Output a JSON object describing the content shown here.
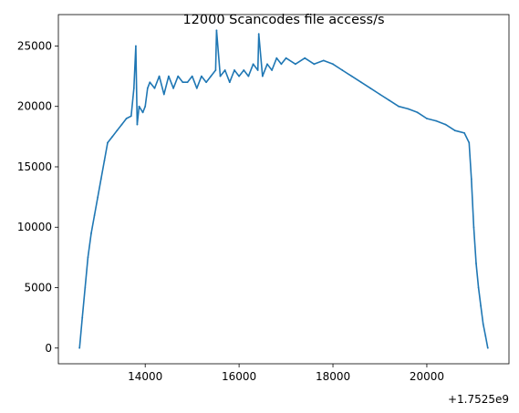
{
  "chart_data": {
    "type": "line",
    "title": "12000 Scancodes file access/s",
    "xlabel": "",
    "ylabel": "",
    "x_offset_label": "+1.7525e9",
    "xlim": [
      12150,
      21750
    ],
    "ylim": [
      -1300,
      27600
    ],
    "x_ticks": [
      14000,
      16000,
      18000,
      20000
    ],
    "x_tick_labels": [
      "14000",
      "16000",
      "18000",
      "20000"
    ],
    "y_ticks": [
      0,
      5000,
      10000,
      15000,
      20000,
      25000
    ],
    "y_tick_labels": [
      "0",
      "5000",
      "10000",
      "15000",
      "20000",
      "25000"
    ],
    "grid": false,
    "series": [
      {
        "color": "#1f77b4",
        "x": [
          12600,
          12660,
          12720,
          12780,
          12850,
          12920,
          12990,
          13060,
          13130,
          13200,
          13300,
          13400,
          13500,
          13600,
          13700,
          13760,
          13800,
          13830,
          13870,
          13950,
          14000,
          14050,
          14100,
          14200,
          14300,
          14400,
          14500,
          14600,
          14700,
          14800,
          14900,
          15000,
          15100,
          15200,
          15300,
          15400,
          15500,
          15520,
          15600,
          15700,
          15800,
          15900,
          16000,
          16100,
          16200,
          16300,
          16400,
          16420,
          16500,
          16600,
          16700,
          16800,
          16900,
          17000,
          17200,
          17400,
          17600,
          17800,
          18000,
          18200,
          18400,
          18600,
          18800,
          19000,
          19200,
          19400,
          19600,
          19800,
          20000,
          20200,
          20400,
          20600,
          20800,
          20900,
          20950,
          21000,
          21050,
          21100,
          21150,
          21200,
          21250,
          21300
        ],
        "y": [
          0,
          2500,
          5000,
          7500,
          9500,
          11000,
          12500,
          14000,
          15500,
          17000,
          17500,
          18000,
          18500,
          19000,
          19200,
          21500,
          25000,
          18500,
          20000,
          19500,
          20000,
          21500,
          22000,
          21500,
          22500,
          21000,
          22500,
          21500,
          22500,
          22000,
          22000,
          22500,
          21500,
          22500,
          22000,
          22500,
          23000,
          26300,
          22500,
          23000,
          22000,
          23000,
          22500,
          23000,
          22500,
          23500,
          23000,
          26000,
          22500,
          23500,
          23000,
          24000,
          23500,
          24000,
          23500,
          24000,
          23500,
          23800,
          23500,
          23000,
          22500,
          22000,
          21500,
          21000,
          20500,
          20000,
          19800,
          19500,
          19000,
          18800,
          18500,
          18000,
          17800,
          17000,
          14000,
          10000,
          7000,
          5000,
          3500,
          2000,
          1000,
          0
        ]
      }
    ]
  }
}
